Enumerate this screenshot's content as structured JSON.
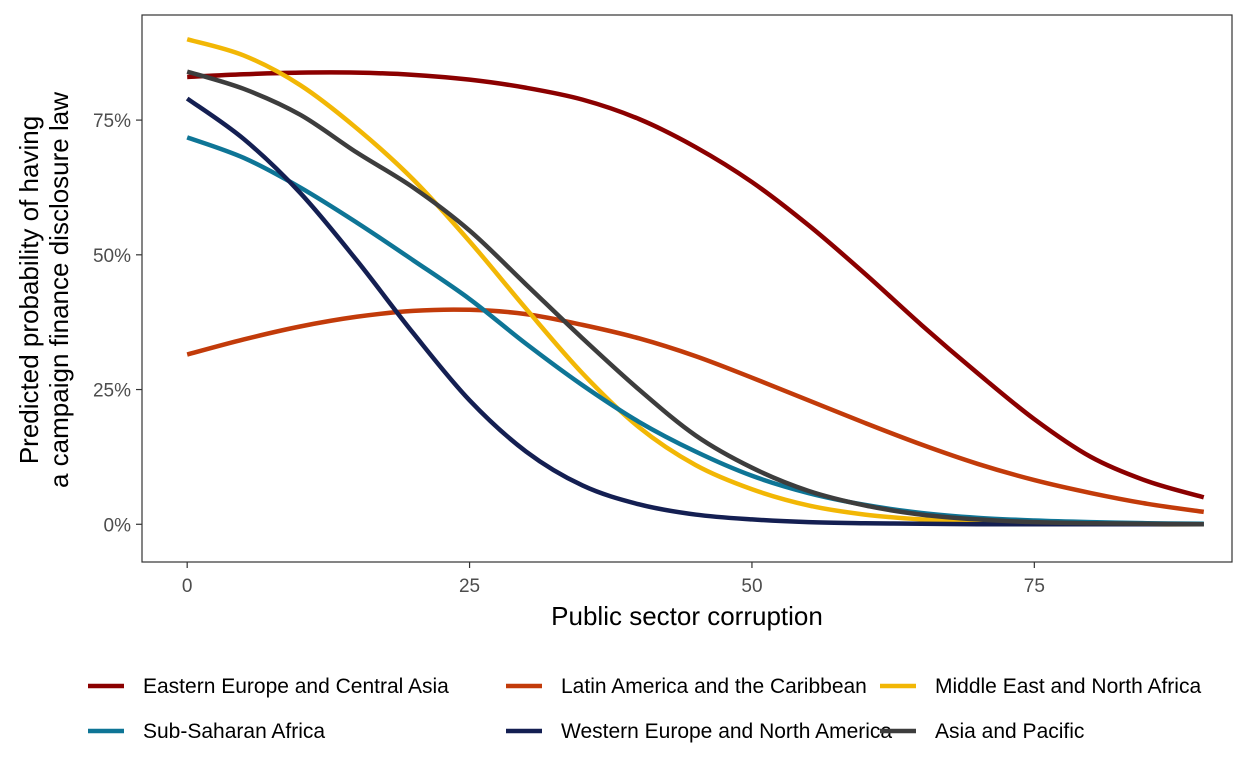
{
  "chart_data": {
    "type": "line",
    "title": "",
    "xlabel": "Public sector corruption",
    "ylabel_lines": [
      "Predicted probability of having",
      "a campaign finance disclosure law"
    ],
    "xlim": [
      -4,
      92.5
    ],
    "ylim": [
      -0.07,
      0.945
    ],
    "x_ticks": [
      {
        "value": 0,
        "label": "0"
      },
      {
        "value": 25,
        "label": "25"
      },
      {
        "value": 50,
        "label": "50"
      },
      {
        "value": 75,
        "label": "75"
      }
    ],
    "y_ticks": [
      {
        "value": 0,
        "label": "0%"
      },
      {
        "value": 0.25,
        "label": "25%"
      },
      {
        "value": 0.5,
        "label": "50%"
      },
      {
        "value": 0.75,
        "label": "75%"
      }
    ],
    "grid": false,
    "legend_position": "bottom",
    "series": [
      {
        "name": "Eastern Europe and Central Asia",
        "color": "#8B0000",
        "x": [
          0,
          5,
          10,
          15,
          20,
          25,
          30,
          35,
          40,
          45,
          50,
          55,
          60,
          65,
          70,
          75,
          80,
          85,
          90
        ],
        "y": [
          0.83,
          0.835,
          0.838,
          0.838,
          0.834,
          0.825,
          0.81,
          0.788,
          0.752,
          0.7,
          0.635,
          0.555,
          0.465,
          0.37,
          0.28,
          0.195,
          0.125,
          0.08,
          0.05
        ]
      },
      {
        "name": "Latin America and the Caribbean",
        "color": "#C23B0A",
        "x": [
          0,
          5,
          10,
          15,
          20,
          25,
          30,
          35,
          40,
          45,
          50,
          55,
          60,
          65,
          70,
          75,
          80,
          85,
          90
        ],
        "y": [
          0.315,
          0.343,
          0.367,
          0.385,
          0.396,
          0.398,
          0.39,
          0.37,
          0.345,
          0.312,
          0.272,
          0.23,
          0.188,
          0.148,
          0.112,
          0.082,
          0.058,
          0.038,
          0.023
        ]
      },
      {
        "name": "Middle East and North Africa",
        "color": "#F2B705",
        "x": [
          0,
          5,
          10,
          15,
          20,
          25,
          30,
          35,
          40,
          45,
          50,
          55,
          60,
          65,
          70,
          75,
          80,
          85,
          90
        ],
        "y": [
          0.9,
          0.87,
          0.815,
          0.735,
          0.64,
          0.525,
          0.4,
          0.28,
          0.18,
          0.11,
          0.065,
          0.035,
          0.018,
          0.009,
          0.004,
          0.002,
          0.001,
          0.0,
          0.0
        ]
      },
      {
        "name": "Sub-Saharan Africa",
        "color": "#0E7596",
        "x": [
          0,
          5,
          10,
          15,
          20,
          25,
          30,
          35,
          40,
          45,
          50,
          55,
          60,
          65,
          70,
          75,
          80,
          85,
          90
        ],
        "y": [
          0.718,
          0.68,
          0.625,
          0.56,
          0.49,
          0.418,
          0.335,
          0.258,
          0.19,
          0.135,
          0.09,
          0.058,
          0.036,
          0.021,
          0.012,
          0.007,
          0.004,
          0.002,
          0.001
        ]
      },
      {
        "name": "Western Europe and North America",
        "color": "#141F52",
        "x": [
          0,
          5,
          10,
          15,
          20,
          25,
          30,
          35,
          40,
          45,
          50,
          55,
          60,
          65,
          70,
          75,
          80,
          85,
          90
        ],
        "y": [
          0.79,
          0.715,
          0.615,
          0.49,
          0.355,
          0.23,
          0.135,
          0.072,
          0.037,
          0.018,
          0.009,
          0.004,
          0.002,
          0.001,
          0.0,
          0.0,
          0.0,
          0.0,
          0.0
        ]
      },
      {
        "name": "Asia and Pacific",
        "color": "#3D3D3D",
        "x": [
          0,
          5,
          10,
          15,
          20,
          25,
          30,
          35,
          40,
          45,
          50,
          55,
          60,
          65,
          70,
          75,
          80,
          85,
          90
        ],
        "y": [
          0.84,
          0.808,
          0.76,
          0.69,
          0.625,
          0.545,
          0.445,
          0.345,
          0.25,
          0.165,
          0.105,
          0.062,
          0.035,
          0.018,
          0.009,
          0.004,
          0.002,
          0.001,
          0.0
        ]
      }
    ]
  }
}
